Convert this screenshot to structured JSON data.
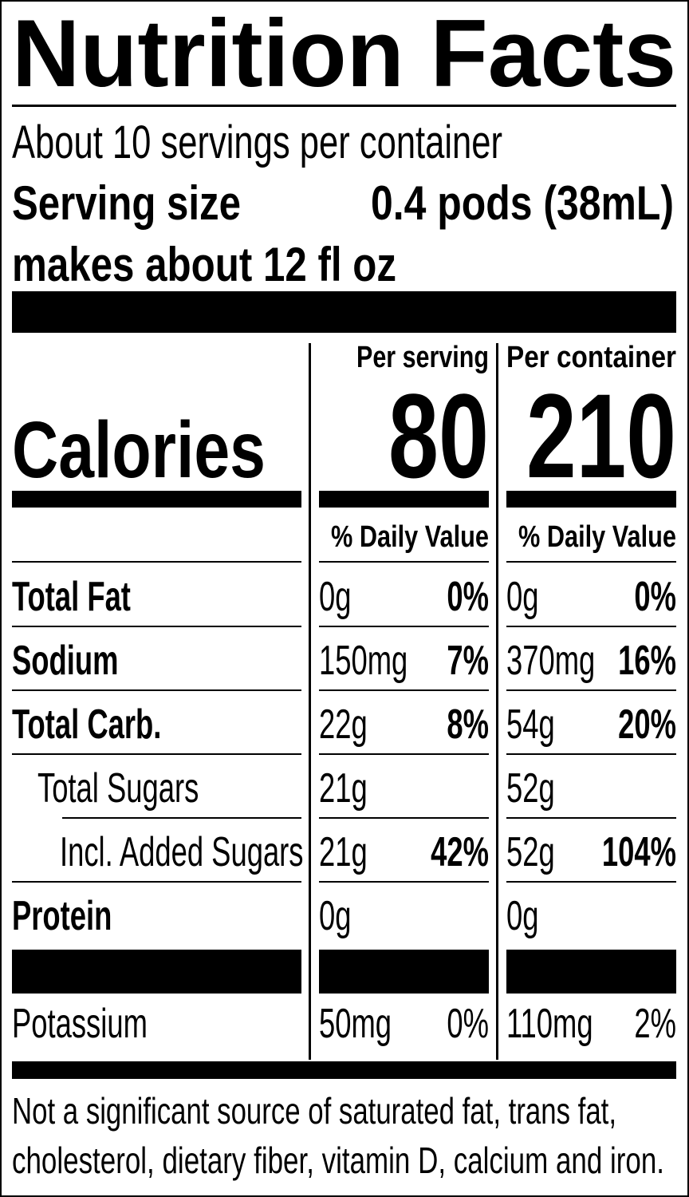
{
  "header": {
    "title": "Nutrition Facts",
    "servings": "About 10 servings per container",
    "serving_size_label": "Serving size",
    "serving_size_value": "0.4 pods (38mL)",
    "makes": "makes about 12 fl oz"
  },
  "calories": {
    "label": "Calories",
    "columns": [
      {
        "heading": "Per serving",
        "value": "80",
        "daily_value_heading": "% Daily Value"
      },
      {
        "heading": "Per container",
        "value": "210",
        "daily_value_heading": "% Daily Value"
      }
    ]
  },
  "nutrients": [
    {
      "name": "Total Fat",
      "bold": true,
      "indent": 0,
      "values": [
        [
          "0g",
          "0%"
        ],
        [
          "0g",
          "0%"
        ]
      ]
    },
    {
      "name": "Sodium",
      "bold": true,
      "indent": 0,
      "values": [
        [
          "150mg",
          "7%"
        ],
        [
          "370mg",
          "16%"
        ]
      ]
    },
    {
      "name": "Total Carb.",
      "bold": true,
      "indent": 0,
      "values": [
        [
          "22g",
          "8%"
        ],
        [
          "54g",
          "20%"
        ]
      ]
    },
    {
      "name": "Total Sugars",
      "bold": false,
      "indent": 1,
      "values": [
        [
          "21g",
          null
        ],
        [
          "52g",
          null
        ]
      ]
    },
    {
      "name": "Incl. Added Sugars",
      "bold": false,
      "indent": 2,
      "values": [
        [
          "21g",
          "42%"
        ],
        [
          "52g",
          "104%"
        ]
      ]
    },
    {
      "name": "Protein",
      "bold": true,
      "indent": 0,
      "values": [
        [
          "0g",
          null
        ],
        [
          "0g",
          null
        ]
      ]
    }
  ],
  "minerals": [
    {
      "name": "Potassium",
      "bold": false,
      "values": [
        [
          "50mg",
          "0%"
        ],
        [
          "110mg",
          "2%"
        ]
      ]
    }
  ],
  "footnote": [
    "Not a significant source of saturated fat, trans fat,",
    "cholesterol, dietary fiber, vitamin D, calcium and iron."
  ]
}
